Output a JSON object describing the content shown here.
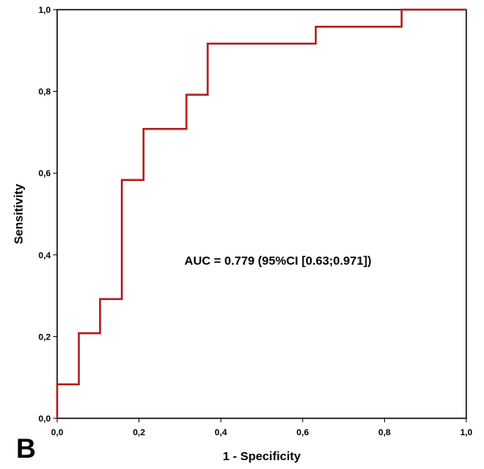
{
  "chart_data": {
    "type": "line",
    "xlabel": "1 - Specificity",
    "ylabel": "Sensitivity",
    "xlim": [
      0,
      1
    ],
    "ylim": [
      0,
      1
    ],
    "xticks": [
      "0,0",
      "0,2",
      "0,4",
      "0,6",
      "0,8",
      "1,0"
    ],
    "yticks": [
      "0,0",
      "0,2",
      "0,4",
      "0,6",
      "0,8",
      "1,0"
    ],
    "grid": false,
    "annotation": "AUC = 0.779 (95%CI [0.63;0.971])",
    "panel_label": "B",
    "line_color": "#b22222",
    "series": [
      {
        "x": [
          0,
          0,
          0.053,
          0.053,
          0.105,
          0.105,
          0.158,
          0.158,
          0.211,
          0.211,
          0.316,
          0.316,
          0.368,
          0.368,
          0.632,
          0.632,
          0.842,
          0.842,
          1.0
        ],
        "y": [
          0,
          0.083,
          0.083,
          0.208,
          0.208,
          0.292,
          0.292,
          0.583,
          0.583,
          0.708,
          0.708,
          0.792,
          0.792,
          0.917,
          0.917,
          0.958,
          0.958,
          1.0,
          1.0
        ]
      }
    ]
  }
}
